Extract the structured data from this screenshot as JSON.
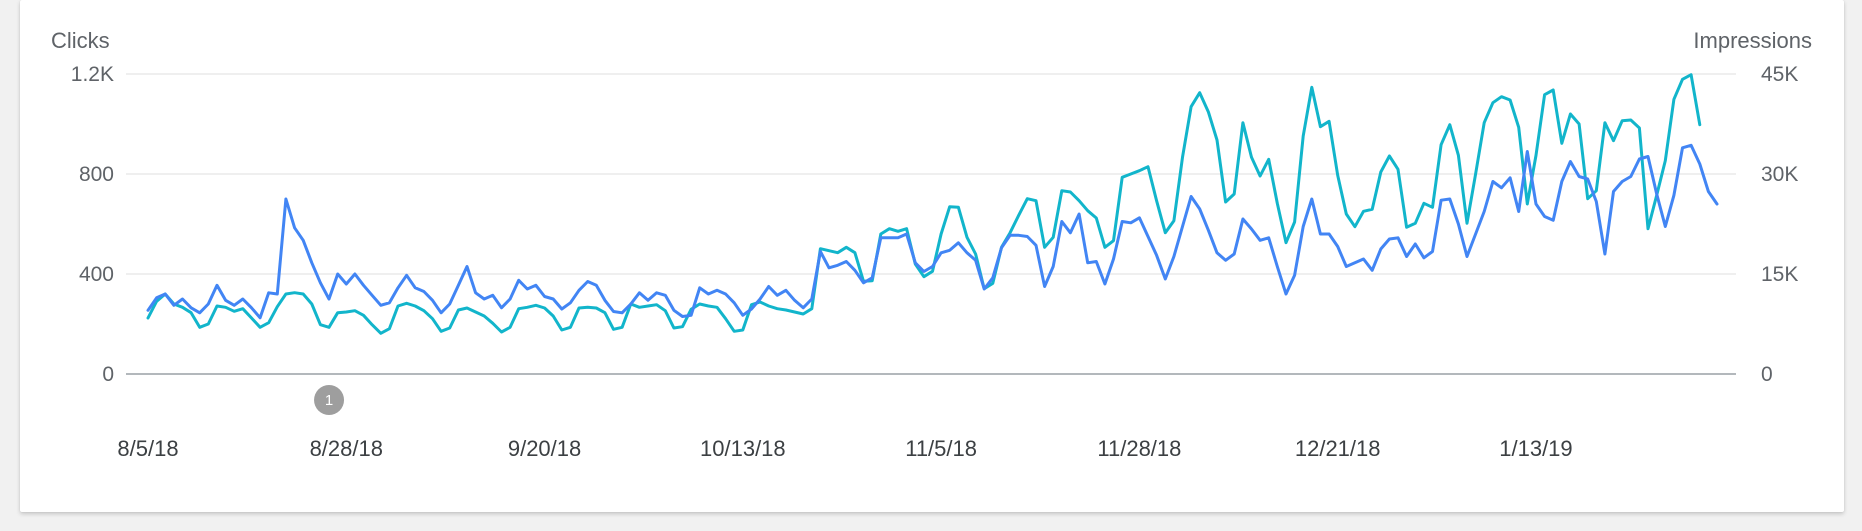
{
  "chart_data": {
    "type": "line",
    "left_axis_title": "Clicks",
    "right_axis_title": "Impressions",
    "left_ticks": [
      "0",
      "400",
      "800",
      "1.2K"
    ],
    "right_ticks": [
      "0",
      "15K",
      "30K",
      "45K"
    ],
    "ylim_left": [
      0,
      1200
    ],
    "ylim_right": [
      0,
      45000
    ],
    "x_tick_labels": [
      "8/5/18",
      "8/28/18",
      "9/20/18",
      "10/13/18",
      "11/5/18",
      "11/28/18",
      "12/21/18",
      "1/13/19"
    ],
    "grid": true,
    "colors": {
      "clicks": "#4285f4",
      "impressions": "#12b5cb"
    },
    "annotations": [
      {
        "label": "1",
        "day": 21
      }
    ],
    "series": [
      {
        "axis": "left",
        "color": "#4285f4",
        "values": [
          255,
          305,
          320,
          275,
          300,
          265,
          245,
          280,
          355,
          295,
          275,
          300,
          265,
          225,
          325,
          320,
          700,
          585,
          535,
          445,
          365,
          300,
          400,
          360,
          400,
          355,
          315,
          275,
          285,
          345,
          395,
          345,
          330,
          295,
          245,
          280,
          355,
          430,
          325,
          300,
          315,
          265,
          300,
          375,
          340,
          355,
          310,
          300,
          260,
          285,
          335,
          370,
          355,
          295,
          250,
          245,
          280,
          325,
          295,
          325,
          315,
          255,
          230,
          235,
          345,
          320,
          335,
          320,
          285,
          235,
          260,
          300,
          350,
          315,
          335,
          295,
          265,
          300,
          490,
          425,
          435,
          450,
          415,
          365,
          385,
          545,
          545,
          545,
          560,
          445,
          410,
          430,
          485,
          495,
          525,
          485,
          455,
          340,
          385,
          505,
          555,
          555,
          550,
          515,
          350,
          430,
          610,
          565,
          640,
          445,
          450,
          360,
          460,
          610,
          605,
          625,
          550,
          475,
          380,
          470,
          590,
          710,
          660,
          575,
          485,
          455,
          480,
          620,
          580,
          535,
          545,
          430,
          320,
          395,
          590,
          700,
          560,
          560,
          510,
          430,
          445,
          460,
          415,
          500,
          540,
          545,
          470,
          520,
          465,
          490,
          695,
          700,
          600,
          470,
          560,
          650,
          770,
          745,
          785,
          650,
          890,
          680,
          630,
          615,
          770,
          850,
          790,
          780,
          690,
          480,
          730,
          770,
          790,
          860,
          870,
          720,
          590,
          715,
          905,
          915,
          840,
          730,
          680
        ]
      },
      {
        "axis": "right",
        "color": "#12b5cb",
        "values": [
          8400,
          10900,
          12000,
          10500,
          10000,
          9200,
          7000,
          7500,
          10200,
          10000,
          9400,
          9800,
          8400,
          7000,
          7700,
          10100,
          12000,
          12200,
          12000,
          10500,
          7400,
          7000,
          9200,
          9300,
          9500,
          8800,
          7400,
          6100,
          6800,
          10200,
          10600,
          10200,
          9500,
          8300,
          6400,
          6900,
          9600,
          9900,
          9300,
          8700,
          7600,
          6300,
          7000,
          9800,
          10000,
          10300,
          9900,
          8700,
          6600,
          7000,
          9900,
          10000,
          9900,
          9200,
          6700,
          7000,
          10500,
          10000,
          10200,
          10400,
          9500,
          6900,
          7100,
          9700,
          10500,
          10200,
          10000,
          8300,
          6400,
          6600,
          10400,
          10800,
          10200,
          9800,
          9600,
          9300,
          9000,
          9800,
          18800,
          18500,
          18200,
          19000,
          18200,
          13900,
          14000,
          21000,
          21800,
          21400,
          21800,
          16500,
          14600,
          15400,
          21000,
          25100,
          25000,
          20500,
          18000,
          12800,
          13600,
          19000,
          21200,
          23800,
          26300,
          26000,
          19000,
          20500,
          27500,
          27300,
          26000,
          24500,
          23400,
          19000,
          20000,
          29500,
          30000,
          30500,
          31100,
          26000,
          21200,
          23000,
          32500,
          40100,
          42200,
          39300,
          35100,
          25800,
          27000,
          37700,
          32500,
          29700,
          32200,
          25600,
          19700,
          22800,
          35700,
          43000,
          37100,
          37900,
          29800,
          24000,
          22100,
          24400,
          24700,
          30300,
          32700,
          30700,
          22000,
          22600,
          25600,
          25000,
          34400,
          37400,
          32800,
          22600,
          30000,
          37700,
          40700,
          41600,
          41100,
          37000,
          25500,
          32800,
          41900,
          42600,
          34600,
          39000,
          37500,
          26300,
          27500,
          37700,
          35000,
          38000,
          38100,
          36900,
          21800,
          26800,
          32000,
          41200,
          44200,
          44900,
          37400
        ]
      }
    ]
  }
}
